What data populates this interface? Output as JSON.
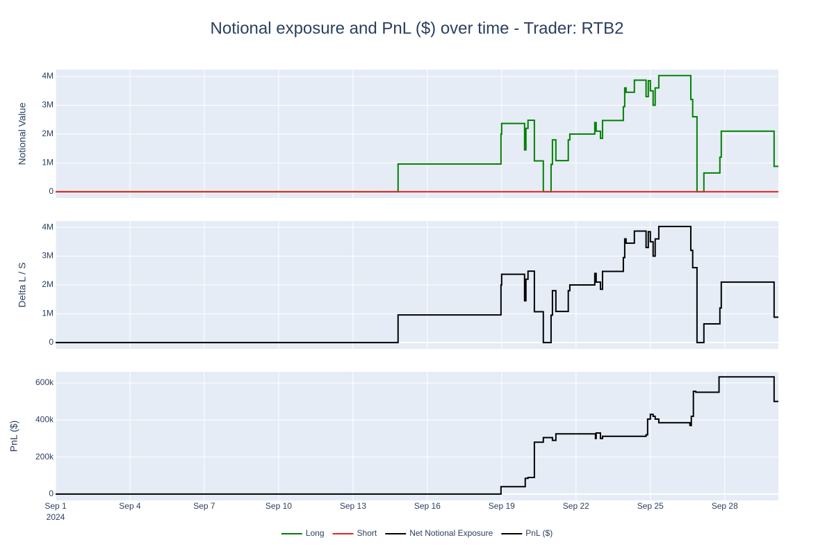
{
  "chart_data": [
    {
      "type": "line",
      "line_shape": "hv",
      "title": "Notional exposure and PnL ($) over time - Trader: RTB2",
      "ylabel": "Notional Value",
      "legend": "bottom",
      "grid": true,
      "xlim": [
        "2024-09-01 00:00",
        "2024-09-30 04:00"
      ],
      "ylim": [
        -220000,
        4240000
      ],
      "yticks": [
        0,
        {
          "value": 1000000,
          "label": "1M"
        },
        {
          "value": 2000000,
          "label": "2M"
        },
        {
          "value": 3000000,
          "label": "3M"
        },
        {
          "value": 4000000,
          "label": "4M"
        }
      ],
      "series": [
        {
          "name": "Long",
          "color": "#008000",
          "x": [
            "2024-09-01 00:00",
            "2024-09-14 19:40",
            "2024-09-18 23:20",
            "2024-09-19 00:00",
            "2024-09-19 22:10",
            "2024-09-19 23:30",
            "2024-09-20 01:30",
            "2024-09-20 07:40",
            "2024-09-20 16:20",
            "2024-09-20 23:50",
            "2024-09-21 01:10",
            "2024-09-21 04:30",
            "2024-09-21 16:30",
            "2024-09-21 18:00",
            "2024-09-22 18:10",
            "2024-09-22 19:30",
            "2024-09-22 23:40",
            "2024-09-23 01:40",
            "2024-09-23 21:50",
            "2024-09-23 23:10",
            "2024-09-24 00:30",
            "2024-09-24 08:30",
            "2024-09-24 19:50",
            "2024-09-24 22:00",
            "2024-09-25 00:00",
            "2024-09-25 02:40",
            "2024-09-25 04:40",
            "2024-09-25 08:10",
            "2024-09-26 15:10",
            "2024-09-26 17:00",
            "2024-09-26 21:10",
            "2024-09-27 03:50",
            "2024-09-27 19:20",
            "2024-09-27 20:40",
            "2024-09-29 23:50",
            "2024-09-30 04:00"
          ],
          "values": [
            0,
            960000,
            2000000,
            2370000,
            1450000,
            2200000,
            2480000,
            1070000,
            0,
            950000,
            1800000,
            1080000,
            1800000,
            2000000,
            2400000,
            2100000,
            1850000,
            2470000,
            2950000,
            3600000,
            3450000,
            3870000,
            3300000,
            3850000,
            3500000,
            3000000,
            3600000,
            4030000,
            3200000,
            2600000,
            0,
            650000,
            1200000,
            2100000,
            880000,
            880000
          ]
        },
        {
          "name": "Short",
          "color": "#e8221a",
          "x": [
            "2024-09-01 00:00",
            "2024-09-30 04:00"
          ],
          "values": [
            0,
            0
          ]
        }
      ]
    },
    {
      "type": "line",
      "line_shape": "hv",
      "ylabel": "Delta L / S",
      "grid": true,
      "xlim": [
        "2024-09-01 00:00",
        "2024-09-30 04:00"
      ],
      "ylim": [
        -220000,
        4220000
      ],
      "yticks": [
        0,
        {
          "value": 1000000,
          "label": "1M"
        },
        {
          "value": 2000000,
          "label": "2M"
        },
        {
          "value": 3000000,
          "label": "3M"
        },
        {
          "value": 4000000,
          "label": "4M"
        }
      ],
      "series": [
        {
          "name": "Net Notional Exposure",
          "color": "#000000",
          "x": [
            "2024-09-01 00:00",
            "2024-09-14 19:40",
            "2024-09-18 23:20",
            "2024-09-19 00:00",
            "2024-09-19 22:10",
            "2024-09-19 23:30",
            "2024-09-20 01:30",
            "2024-09-20 07:40",
            "2024-09-20 16:20",
            "2024-09-20 23:50",
            "2024-09-21 01:10",
            "2024-09-21 04:30",
            "2024-09-21 16:30",
            "2024-09-21 18:00",
            "2024-09-22 18:10",
            "2024-09-22 19:30",
            "2024-09-22 23:40",
            "2024-09-23 01:40",
            "2024-09-23 21:50",
            "2024-09-23 23:10",
            "2024-09-24 00:30",
            "2024-09-24 08:30",
            "2024-09-24 19:50",
            "2024-09-24 22:00",
            "2024-09-25 00:00",
            "2024-09-25 02:40",
            "2024-09-25 04:40",
            "2024-09-25 08:10",
            "2024-09-26 15:10",
            "2024-09-26 17:00",
            "2024-09-26 21:10",
            "2024-09-27 03:50",
            "2024-09-27 19:20",
            "2024-09-27 20:40",
            "2024-09-29 23:50",
            "2024-09-30 04:00"
          ],
          "values": [
            0,
            960000,
            2000000,
            2370000,
            1450000,
            2200000,
            2480000,
            1070000,
            0,
            950000,
            1800000,
            1080000,
            1800000,
            2000000,
            2400000,
            2100000,
            1850000,
            2470000,
            2950000,
            3600000,
            3450000,
            3870000,
            3300000,
            3850000,
            3500000,
            3000000,
            3600000,
            4030000,
            3200000,
            2600000,
            0,
            650000,
            1200000,
            2100000,
            880000,
            880000
          ]
        }
      ]
    },
    {
      "type": "line",
      "line_shape": "hv",
      "ylabel": "PnL ($)",
      "grid": true,
      "xlim": [
        "2024-09-01 00:00",
        "2024-09-30 04:00"
      ],
      "ylim": [
        -34000,
        660000
      ],
      "yticks": [
        0,
        {
          "value": 200000,
          "label": "200k"
        },
        {
          "value": 400000,
          "label": "400k"
        },
        {
          "value": 600000,
          "label": "600k"
        }
      ],
      "xticks": [
        {
          "value": "2024-09-01",
          "label": "Sep 1\n2024"
        },
        {
          "value": "2024-09-04",
          "label": "Sep 4"
        },
        {
          "value": "2024-09-07",
          "label": "Sep 7"
        },
        {
          "value": "2024-09-10",
          "label": "Sep 10"
        },
        {
          "value": "2024-09-13",
          "label": "Sep 13"
        },
        {
          "value": "2024-09-16",
          "label": "Sep 16"
        },
        {
          "value": "2024-09-19",
          "label": "Sep 19"
        },
        {
          "value": "2024-09-22",
          "label": "Sep 22"
        },
        {
          "value": "2024-09-25",
          "label": "Sep 25"
        },
        {
          "value": "2024-09-28",
          "label": "Sep 28"
        }
      ],
      "series": [
        {
          "name": "PnL ($)",
          "color": "#000000",
          "x": [
            "2024-09-01 00:00",
            "2024-09-18 23:20",
            "2024-09-19 22:50",
            "2024-09-20 01:30",
            "2024-09-20 07:40",
            "2024-09-20 16:20",
            "2024-09-21 01:10",
            "2024-09-21 04:30",
            "2024-09-22 18:50",
            "2024-09-22 19:30",
            "2024-09-22 23:40",
            "2024-09-23 01:40",
            "2024-09-24 19:50",
            "2024-09-24 21:20",
            "2024-09-25 00:00",
            "2024-09-25 02:40",
            "2024-09-25 04:40",
            "2024-09-25 08:10",
            "2024-09-26 14:20",
            "2024-09-26 15:40",
            "2024-09-26 17:40",
            "2024-09-26 20:00",
            "2024-09-27 18:30",
            "2024-09-29 23:50",
            "2024-09-30 04:00"
          ],
          "values": [
            0,
            40000,
            85000,
            90000,
            280000,
            305000,
            290000,
            325000,
            300000,
            330000,
            300000,
            312000,
            320000,
            405000,
            430000,
            420000,
            405000,
            385000,
            370000,
            420000,
            555000,
            550000,
            633000,
            500000,
            500000
          ]
        }
      ]
    }
  ]
}
